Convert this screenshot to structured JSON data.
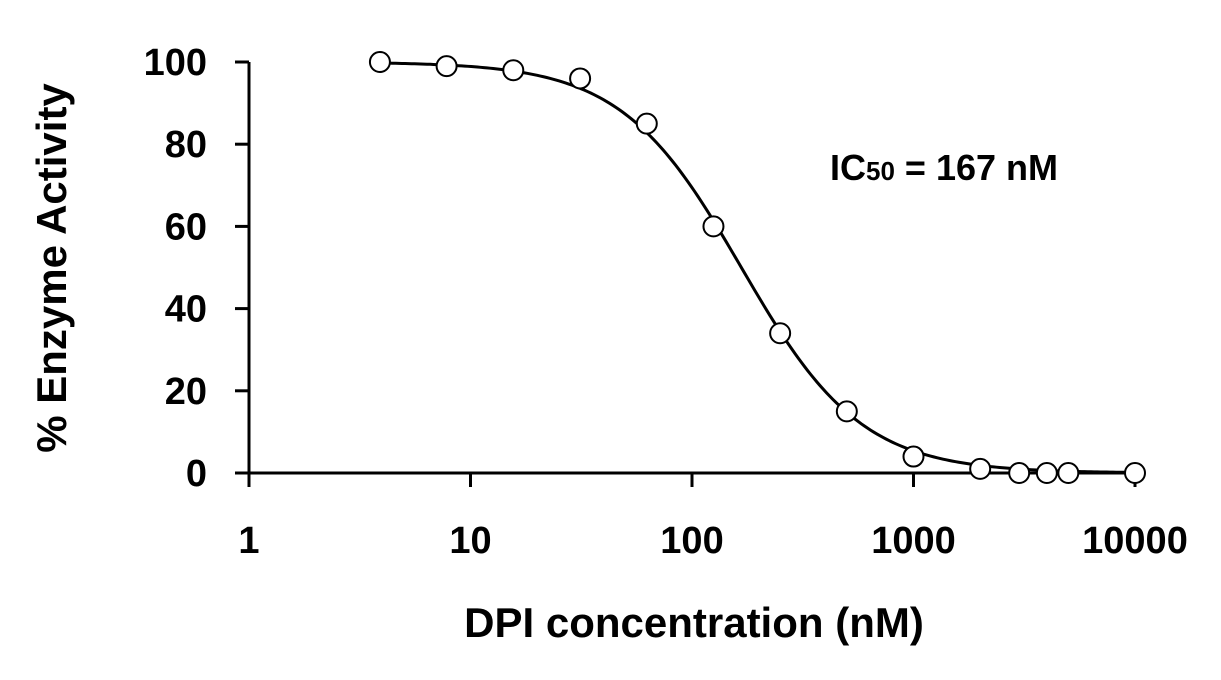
{
  "chart_data": {
    "type": "scatter",
    "xlabel": "DPI concentration (nM)",
    "ylabel": "% Enzyme Activity",
    "x_scale": "log",
    "xlim": [
      1,
      10000
    ],
    "ylim": [
      0,
      100
    ],
    "x_ticks": [
      "1",
      "10",
      "100",
      "1000",
      "10000"
    ],
    "y_ticks": [
      "0",
      "20",
      "40",
      "60",
      "80",
      "100"
    ],
    "grid": false,
    "legend": "none",
    "annotation": {
      "main": "IC",
      "sub": "50",
      "rest": " = 167 nM"
    },
    "ic50": 167,
    "hill_slope": 1.6,
    "points": [
      {
        "x": 3.9,
        "y": 100
      },
      {
        "x": 7.8,
        "y": 99
      },
      {
        "x": 15.6,
        "y": 98
      },
      {
        "x": 31.25,
        "y": 96
      },
      {
        "x": 62.5,
        "y": 85
      },
      {
        "x": 125,
        "y": 60
      },
      {
        "x": 250,
        "y": 34
      },
      {
        "x": 500,
        "y": 15
      },
      {
        "x": 1000,
        "y": 4
      },
      {
        "x": 2000,
        "y": 1
      },
      {
        "x": 3000,
        "y": 0
      },
      {
        "x": 4000,
        "y": 0
      },
      {
        "x": 5000,
        "y": 0
      },
      {
        "x": 10000,
        "y": 0
      }
    ],
    "colors": {
      "line": "#000000",
      "marker_fill": "#ffffff",
      "marker_stroke": "#000000"
    }
  }
}
